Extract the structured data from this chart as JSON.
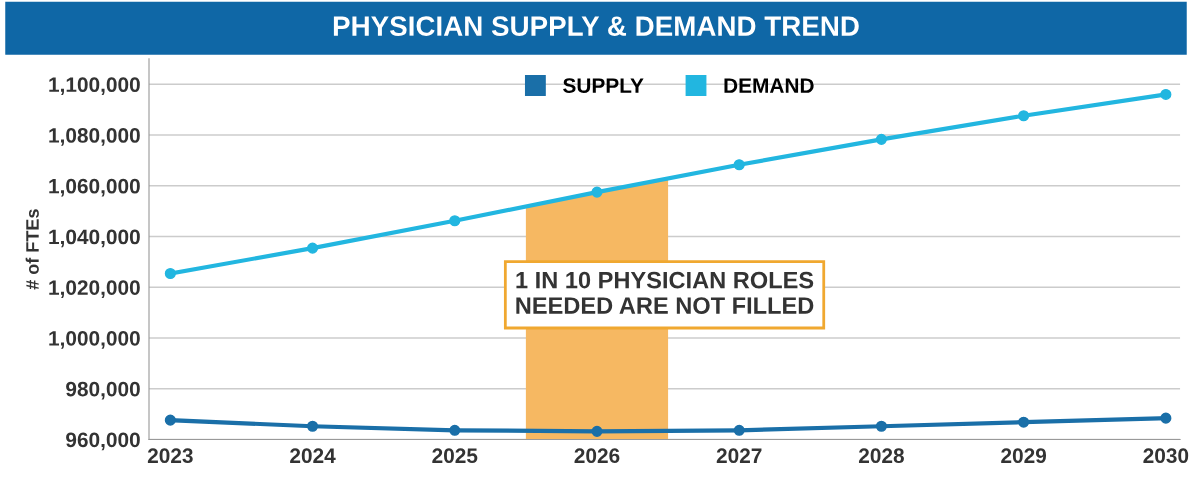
{
  "chart_data": {
    "type": "line",
    "title": "PHYSICIAN SUPPLY & DEMAND TREND",
    "ylabel": "# of FTEs",
    "x": [
      2023,
      2024,
      2025,
      2026,
      2027,
      2028,
      2029,
      2030
    ],
    "series": [
      {
        "name": "SUPPLY",
        "color": "#1a6fa8",
        "values": [
          967600,
          965200,
          963600,
          963200,
          963600,
          965200,
          966800,
          968400
        ]
      },
      {
        "name": "DEMAND",
        "color": "#22b6e0",
        "values": [
          1025400,
          1035400,
          1046200,
          1057500,
          1068300,
          1078300,
          1087600,
          1096000
        ]
      }
    ],
    "bands": [
      {
        "axis": "x",
        "from": 2025.5,
        "to": 2026.5,
        "color": "#f6b862"
      }
    ],
    "annotations": [
      "1 IN 10 PHYSICIAN ROLES\nNEEDED ARE NOT FILLED"
    ],
    "xlim": [
      2022.85,
      2030.1
    ],
    "xticks": [
      2023,
      2024,
      2025,
      2026,
      2027,
      2028,
      2029,
      2030
    ],
    "ylim": [
      960000,
      1110000
    ],
    "yticks": [
      {
        "value": 960000,
        "label": "960,000"
      },
      {
        "value": 980000,
        "label": "980,000"
      },
      {
        "value": 1000000,
        "label": "1,000,000"
      },
      {
        "value": 1020000,
        "label": "1,020,000"
      },
      {
        "value": 1040000,
        "label": "1,040,000"
      },
      {
        "value": 1060000,
        "label": "1,060,000"
      },
      {
        "value": 1080000,
        "label": "1,080,000"
      },
      {
        "value": 1100000,
        "label": "1,100,000"
      }
    ],
    "grid": "y",
    "legend": "top",
    "marker": "circle",
    "line_style": "solid"
  }
}
